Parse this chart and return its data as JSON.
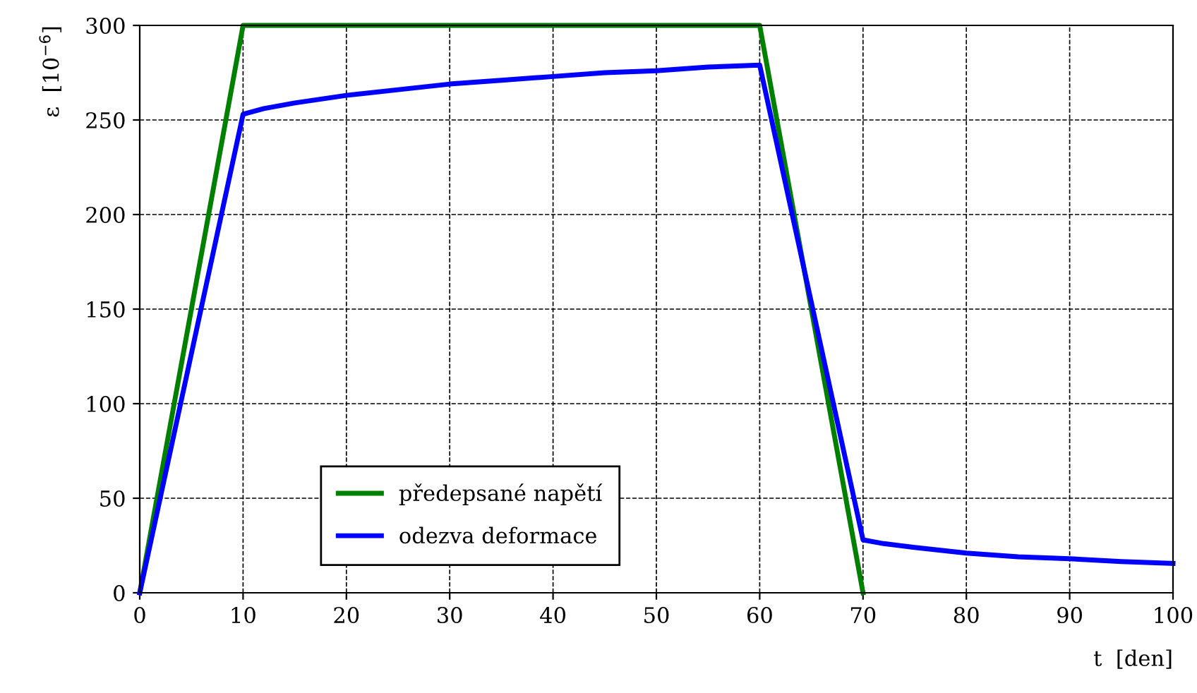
{
  "chart_data": {
    "type": "line",
    "xlabel": "t  [den]",
    "ylabel": "ε  [10$^{−6}$]",
    "xlim": [
      0,
      100
    ],
    "ylim": [
      0,
      300
    ],
    "xticks": [
      0,
      10,
      20,
      30,
      40,
      50,
      60,
      70,
      80,
      90,
      100
    ],
    "yticks": [
      0,
      50,
      100,
      150,
      200,
      250,
      300
    ],
    "grid": true,
    "legend": "bottom left",
    "line_style": "solid",
    "marker": "none",
    "series": [
      {
        "name": "předepsané napětí",
        "color": "#008000",
        "x": [
          0,
          10,
          60,
          70
        ],
        "values": [
          0,
          300,
          300,
          0
        ]
      },
      {
        "name": "odezva deformace",
        "color": "#0000ff",
        "x": [
          0,
          10,
          12,
          15,
          20,
          25,
          30,
          35,
          40,
          45,
          50,
          55,
          60,
          70,
          72,
          75,
          80,
          85,
          90,
          95,
          100
        ],
        "values": [
          0,
          253,
          256,
          259,
          263,
          266,
          269,
          271,
          273,
          275,
          276,
          278,
          279,
          28,
          26,
          24,
          21,
          19,
          18,
          16.5,
          15.5
        ]
      }
    ]
  }
}
